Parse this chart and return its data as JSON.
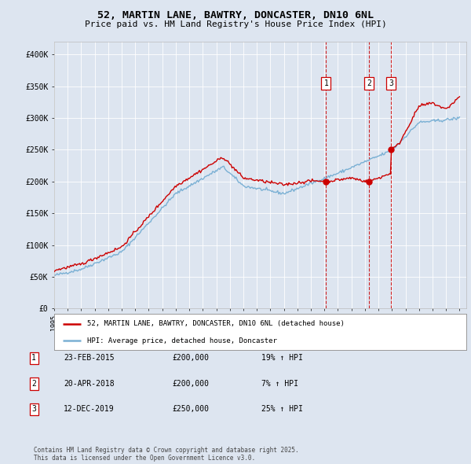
{
  "title": "52, MARTIN LANE, BAWTRY, DONCASTER, DN10 6NL",
  "subtitle": "Price paid vs. HM Land Registry's House Price Index (HPI)",
  "background_color": "#dde5f0",
  "plot_bg_color": "#dde5f0",
  "x_start_year": 1995,
  "x_end_year": 2025,
  "y_min": 0,
  "y_max": 420000,
  "y_ticks": [
    0,
    50000,
    100000,
    150000,
    200000,
    250000,
    300000,
    350000,
    400000
  ],
  "y_tick_labels": [
    "£0",
    "£50K",
    "£100K",
    "£150K",
    "£200K",
    "£250K",
    "£300K",
    "£350K",
    "£400K"
  ],
  "sales": [
    {
      "date_year": 2015.12,
      "price": 200000,
      "label": "1"
    },
    {
      "date_year": 2018.3,
      "price": 200000,
      "label": "2"
    },
    {
      "date_year": 2019.93,
      "price": 250000,
      "label": "3"
    }
  ],
  "sale_annotations": [
    {
      "label": "1",
      "date": "23-FEB-2015",
      "price": "£200,000",
      "hpi_change": "19% ↑ HPI"
    },
    {
      "label": "2",
      "date": "20-APR-2018",
      "price": "£200,000",
      "hpi_change": "7% ↑ HPI"
    },
    {
      "label": "3",
      "date": "12-DEC-2019",
      "price": "£250,000",
      "hpi_change": "25% ↑ HPI"
    }
  ],
  "legend_line1": "52, MARTIN LANE, BAWTRY, DONCASTER, DN10 6NL (detached house)",
  "legend_line2": "HPI: Average price, detached house, Doncaster",
  "footer": "Contains HM Land Registry data © Crown copyright and database right 2025.\nThis data is licensed under the Open Government Licence v3.0.",
  "line_color_red": "#cc0000",
  "line_color_blue": "#7ab0d4",
  "vline_color": "#cc0000",
  "grid_color": "#ffffff"
}
